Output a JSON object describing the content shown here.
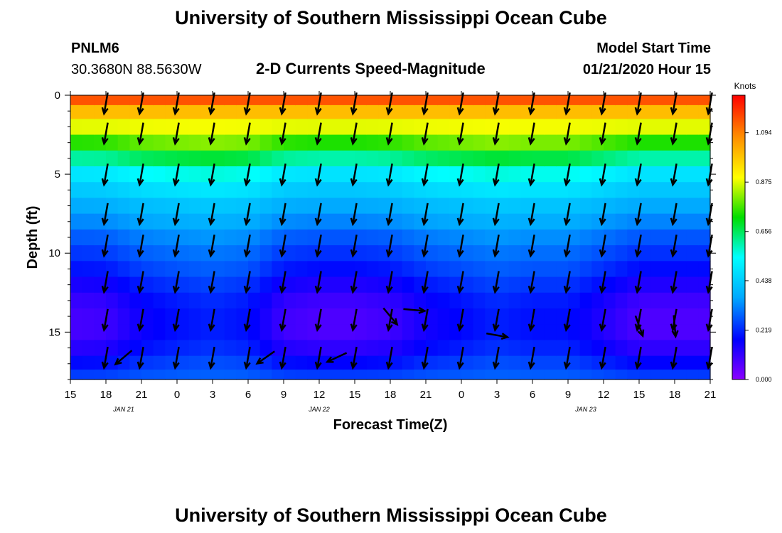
{
  "page": {
    "title_top": "University of Southern Mississippi Ocean Cube",
    "title_bottom": "University of Southern Mississippi Ocean Cube",
    "station_id": "PNLM6",
    "station_coords": "30.3680N 88.5630W",
    "chart_heading": "2-D Currents Speed-Magnitude",
    "model_start_label": "Model Start Time",
    "model_start_value": "01/21/2020 Hour 15"
  },
  "chart_data": {
    "type": "heatmap",
    "title": "2-D Currents Speed-Magnitude",
    "xlabel": "Forecast Time(Z)",
    "ylabel": "Depth (ft)",
    "x_tick_labels": [
      "15",
      "18",
      "21",
      "0",
      "3",
      "6",
      "9",
      "12",
      "15",
      "18",
      "21",
      "0",
      "3",
      "6",
      "9",
      "12",
      "15",
      "18",
      "21"
    ],
    "x_range_hours": [
      0,
      54
    ],
    "date_labels": [
      {
        "text": "JAN 21",
        "hour": 4.5
      },
      {
        "text": "JAN 22",
        "hour": 21
      },
      {
        "text": "JAN 23",
        "hour": 43.5
      }
    ],
    "y_ticks": [
      0,
      5,
      10,
      15
    ],
    "y_range_ft": [
      0,
      18
    ],
    "colorbar": {
      "unit": "Knots",
      "min": 0.0,
      "max": 1.26,
      "tick_labels": [
        "0.000",
        "0.219",
        "0.438",
        "0.656",
        "0.875",
        "1.094"
      ],
      "tick_values": [
        0.0,
        0.219,
        0.438,
        0.656,
        0.875,
        1.094
      ],
      "colors": [
        "#8a00ff",
        "#0000ff",
        "#00aaff",
        "#00ffff",
        "#00dd00",
        "#ffff00",
        "#ff8800",
        "#ff0000"
      ]
    },
    "depth_rows_ft": [
      0.25,
      1.0,
      2.0,
      3.0,
      4.0,
      5.0,
      6.0,
      7.0,
      8.0,
      9.0,
      10.0,
      11.0,
      12.0,
      13.0,
      14.0,
      15.0,
      16.0,
      17.0,
      17.75
    ],
    "speed_profile_knots": {
      "a": [
        1.15,
        1.0,
        0.88,
        0.74,
        0.6,
        0.48,
        0.42,
        0.36,
        0.32,
        0.27,
        0.23,
        0.19,
        0.14,
        0.1,
        0.08,
        0.08,
        0.12,
        0.18,
        0.24
      ],
      "b": [
        1.15,
        1.0,
        0.9,
        0.85,
        0.72,
        0.6,
        0.52,
        0.45,
        0.4,
        0.37,
        0.34,
        0.32,
        0.3,
        0.28,
        0.27,
        0.27,
        0.28,
        0.3,
        0.3
      ]
    },
    "time_weight_b": [
      [
        0,
        0.05
      ],
      [
        3,
        0.1
      ],
      [
        6,
        0.45
      ],
      [
        9,
        0.6
      ],
      [
        12,
        0.7
      ],
      [
        15,
        0.6
      ],
      [
        18,
        0.1
      ],
      [
        21,
        0.0
      ],
      [
        24,
        0.0
      ],
      [
        27,
        0.1
      ],
      [
        30,
        0.4
      ],
      [
        33,
        0.55
      ],
      [
        36,
        0.7
      ],
      [
        39,
        0.6
      ],
      [
        42,
        0.6
      ],
      [
        45,
        0.3
      ],
      [
        48,
        0.0
      ],
      [
        51,
        0.0
      ],
      [
        54,
        0.0
      ]
    ],
    "arrow_times_hours": [
      3,
      6,
      9,
      12,
      15,
      18,
      21,
      24,
      27,
      30,
      33,
      36,
      39,
      42,
      45,
      48,
      51,
      54
    ],
    "arrow_depths_ft": [
      0.5,
      2.4,
      5.0,
      7.5,
      9.5,
      11.8,
      14.2,
      16.6
    ],
    "arrow_direction_deg": 190,
    "arrow_overrides": [
      {
        "hour": 4.5,
        "depth": 16.6,
        "dir": 230
      },
      {
        "hour": 16.5,
        "depth": 16.6,
        "dir": 235
      },
      {
        "hour": 22.5,
        "depth": 16.6,
        "dir": 245
      },
      {
        "hour": 27.0,
        "depth": 14.0,
        "dir": 140
      },
      {
        "hour": 29.0,
        "depth": 13.6,
        "dir": 95
      },
      {
        "hour": 36.0,
        "depth": 15.2,
        "dir": 100
      },
      {
        "hour": 51.0,
        "depth": 14.6,
        "dir": 175
      },
      {
        "hour": 48.0,
        "depth": 14.6,
        "dir": 160
      }
    ]
  }
}
